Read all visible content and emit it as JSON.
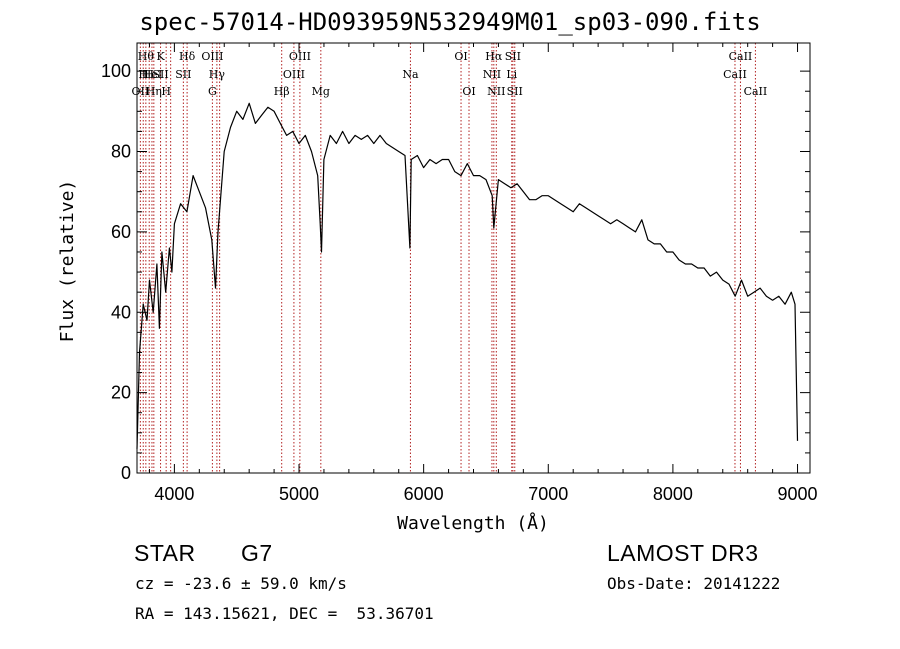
{
  "chart_data": {
    "type": "line",
    "title": "spec-57014-HD093959N532949M01_sp03-090.fits",
    "xlabel": "Wavelength (Å)",
    "ylabel": "Flux (relative)",
    "xlim": [
      3700,
      9100
    ],
    "ylim": [
      0,
      107
    ],
    "xticks": [
      4000,
      5000,
      6000,
      7000,
      8000,
      9000
    ],
    "yticks": [
      0,
      20,
      40,
      60,
      80,
      100
    ],
    "grid": false,
    "series": [
      {
        "color": "#000000",
        "x": [
          3700,
          3720,
          3750,
          3780,
          3800,
          3830,
          3860,
          3880,
          3900,
          3930,
          3960,
          3980,
          4000,
          4050,
          4100,
          4150,
          4200,
          4250,
          4300,
          4330,
          4350,
          4400,
          4450,
          4500,
          4550,
          4600,
          4650,
          4700,
          4750,
          4800,
          4850,
          4900,
          4950,
          5000,
          5050,
          5100,
          5150,
          5170,
          5180,
          5200,
          5250,
          5300,
          5350,
          5400,
          5450,
          5500,
          5550,
          5600,
          5650,
          5700,
          5750,
          5800,
          5850,
          5890,
          5900,
          5950,
          6000,
          6050,
          6100,
          6150,
          6200,
          6250,
          6300,
          6350,
          6400,
          6450,
          6500,
          6550,
          6563,
          6600,
          6650,
          6700,
          6750,
          6800,
          6850,
          6900,
          6950,
          7000,
          7050,
          7100,
          7150,
          7200,
          7250,
          7300,
          7350,
          7400,
          7450,
          7500,
          7550,
          7600,
          7650,
          7700,
          7750,
          7800,
          7850,
          7900,
          7950,
          8000,
          8050,
          8100,
          8150,
          8200,
          8250,
          8300,
          8350,
          8400,
          8450,
          8500,
          8550,
          8600,
          8650,
          8700,
          8750,
          8800,
          8850,
          8900,
          8950,
          8980,
          9000
        ],
        "y": [
          6,
          30,
          42,
          38,
          48,
          40,
          52,
          36,
          55,
          45,
          56,
          50,
          62,
          67,
          65,
          74,
          70,
          66,
          58,
          46,
          60,
          80,
          86,
          90,
          88,
          92,
          87,
          89,
          91,
          90,
          87,
          84,
          85,
          82,
          84,
          80,
          74,
          62,
          55,
          78,
          84,
          82,
          85,
          82,
          84,
          83,
          84,
          82,
          84,
          82,
          81,
          80,
          79,
          56,
          78,
          79,
          76,
          78,
          77,
          78,
          78,
          75,
          74,
          77,
          74,
          74,
          73,
          69,
          61,
          73,
          72,
          71,
          72,
          70,
          68,
          68,
          69,
          69,
          68,
          67,
          66,
          65,
          67,
          66,
          65,
          64,
          63,
          62,
          63,
          62,
          61,
          60,
          63,
          58,
          57,
          57,
          55,
          55,
          53,
          52,
          52,
          51,
          51,
          49,
          50,
          48,
          47,
          44,
          48,
          44,
          45,
          46,
          44,
          43,
          44,
          42,
          45,
          42,
          8
        ]
      }
    ],
    "line_markers": [
      {
        "x": 3727,
        "labels": [
          {
            "row": 3,
            "text": "OII"
          }
        ]
      },
      {
        "x": 3750,
        "labels": [
          {
            "row": 2,
            "text": "H"
          }
        ]
      },
      {
        "x": 3771,
        "labels": [
          {
            "row": 1,
            "text": "Hθ"
          }
        ]
      },
      {
        "x": 3798,
        "labels": [
          {
            "row": 2,
            "text": "H"
          }
        ]
      },
      {
        "x": 3820,
        "labels": [
          {
            "row": 2,
            "text": "HeI"
          }
        ]
      },
      {
        "x": 3835,
        "labels": [
          {
            "row": 3,
            "text": "Hη"
          }
        ]
      },
      {
        "x": 3889,
        "labels": [
          {
            "row": 1,
            "text": "K"
          },
          {
            "row": 2,
            "text": "SII"
          }
        ]
      },
      {
        "x": 3934,
        "labels": [
          {
            "row": 3,
            "text": "H"
          }
        ]
      },
      {
        "x": 3970,
        "labels": []
      },
      {
        "x": 4072,
        "labels": [
          {
            "row": 2,
            "text": "SII"
          }
        ]
      },
      {
        "x": 4102,
        "labels": [
          {
            "row": 1,
            "text": "Hδ"
          }
        ]
      },
      {
        "x": 4305,
        "labels": [
          {
            "row": 1,
            "text": "OIII"
          },
          {
            "row": 3,
            "text": "G"
          }
        ]
      },
      {
        "x": 4341,
        "labels": [
          {
            "row": 2,
            "text": "Hγ"
          }
        ]
      },
      {
        "x": 4363,
        "labels": []
      },
      {
        "x": 4861,
        "labels": [
          {
            "row": 3,
            "text": "Hβ"
          }
        ]
      },
      {
        "x": 4959,
        "labels": [
          {
            "row": 2,
            "text": "OIII"
          }
        ]
      },
      {
        "x": 5007,
        "labels": [
          {
            "row": 1,
            "text": "OIII"
          }
        ]
      },
      {
        "x": 5175,
        "labels": [
          {
            "row": 3,
            "text": "Mg"
          }
        ]
      },
      {
        "x": 5894,
        "labels": [
          {
            "row": 2,
            "text": "Na"
          }
        ]
      },
      {
        "x": 6300,
        "labels": [
          {
            "row": 1,
            "text": "OI"
          }
        ]
      },
      {
        "x": 6364,
        "labels": [
          {
            "row": 3,
            "text": "OI"
          }
        ]
      },
      {
        "x": 6548,
        "labels": [
          {
            "row": 2,
            "text": "NII"
          }
        ]
      },
      {
        "x": 6563,
        "labels": [
          {
            "row": 1,
            "text": "Hα"
          }
        ]
      },
      {
        "x": 6583,
        "labels": [
          {
            "row": 3,
            "text": "NII"
          }
        ]
      },
      {
        "x": 6707,
        "labels": [
          {
            "row": 2,
            "text": "Li"
          }
        ]
      },
      {
        "x": 6716,
        "labels": [
          {
            "row": 1,
            "text": "SII"
          }
        ]
      },
      {
        "x": 6731,
        "labels": [
          {
            "row": 3,
            "text": "SII"
          }
        ]
      },
      {
        "x": 8498,
        "labels": [
          {
            "row": 2,
            "text": "CaII"
          }
        ]
      },
      {
        "x": 8542,
        "labels": [
          {
            "row": 1,
            "text": "CaII"
          }
        ]
      },
      {
        "x": 8662,
        "labels": [
          {
            "row": 3,
            "text": "CaII"
          }
        ]
      }
    ],
    "marker_color": "#b22222"
  },
  "info": {
    "object_class": "STAR",
    "subclass": "G7",
    "survey": "LAMOST DR3",
    "redshift": "cz = -23.6 ± 59.0 km/s",
    "obs_date": "Obs-Date: 20141222",
    "coords": "RA = 143.15621, DEC =  53.36701"
  }
}
